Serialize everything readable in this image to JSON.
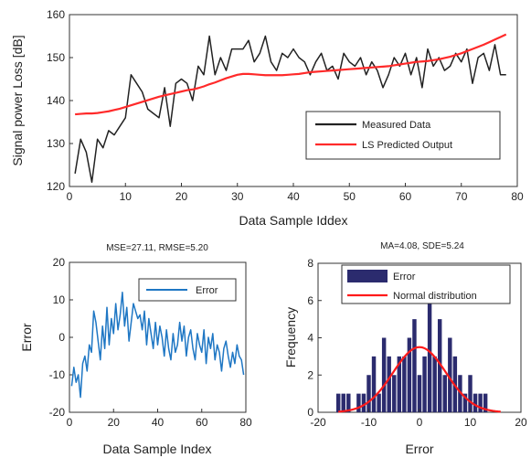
{
  "chart_data": [
    {
      "type": "line",
      "xlabel": "Data Sample Iddex",
      "ylabel": "Signal power Loss [dB]",
      "xlim": [
        0,
        80
      ],
      "ylim": [
        120,
        160
      ],
      "xticks": [
        "0",
        "10",
        "20",
        "30",
        "40",
        "50",
        "60",
        "70",
        "80"
      ],
      "yticks": [
        "120",
        "130",
        "140",
        "150",
        "160"
      ],
      "legend_position": "bottom-right",
      "colors": {
        "measured": "#222222",
        "predicted": "#ff2a2a"
      },
      "series": [
        {
          "name": "Measured Data",
          "x": [
            1,
            2,
            3,
            4,
            5,
            6,
            7,
            8,
            9,
            10,
            11,
            12,
            13,
            14,
            15,
            16,
            17,
            18,
            19,
            20,
            21,
            22,
            23,
            24,
            25,
            26,
            27,
            28,
            29,
            30,
            31,
            32,
            33,
            34,
            35,
            36,
            37,
            38,
            39,
            40,
            41,
            42,
            43,
            44,
            45,
            46,
            47,
            48,
            49,
            50,
            51,
            52,
            53,
            54,
            55,
            56,
            57,
            58,
            59,
            60,
            61,
            62,
            63,
            64,
            65,
            66,
            67,
            68,
            69,
            70,
            71,
            72,
            73,
            74,
            75,
            76,
            77,
            78
          ],
          "values": [
            123,
            131,
            128,
            121,
            131,
            129,
            133,
            132,
            134,
            136,
            146,
            144,
            142,
            138,
            137,
            136,
            143,
            134,
            144,
            145,
            144,
            140,
            148,
            146,
            155,
            146,
            150,
            147,
            152,
            152,
            152,
            154,
            149,
            151,
            155,
            149,
            147,
            151,
            150,
            152,
            150,
            149,
            146,
            149,
            151,
            147,
            148,
            145,
            151,
            149,
            148,
            150,
            146,
            149,
            147,
            143,
            146,
            150,
            148,
            151,
            146,
            150,
            143,
            152,
            148,
            150,
            147,
            148,
            151,
            149,
            152,
            144,
            150,
            151,
            147,
            153,
            146,
            146
          ]
        },
        {
          "name": "LS Predicted Output",
          "x": [
            1,
            2,
            3,
            4,
            5,
            6,
            7,
            8,
            9,
            10,
            11,
            12,
            13,
            14,
            15,
            16,
            17,
            18,
            19,
            20,
            21,
            22,
            23,
            24,
            25,
            26,
            27,
            28,
            29,
            30,
            31,
            32,
            33,
            34,
            35,
            36,
            37,
            38,
            39,
            40,
            41,
            42,
            43,
            44,
            45,
            46,
            47,
            48,
            49,
            50,
            51,
            52,
            53,
            54,
            55,
            56,
            57,
            58,
            59,
            60,
            61,
            62,
            63,
            64,
            65,
            66,
            67,
            68,
            69,
            70,
            71,
            72,
            73,
            74,
            75,
            76,
            77,
            78
          ],
          "values": [
            136.8,
            136.9,
            137.0,
            137.0,
            137.1,
            137.3,
            137.5,
            137.8,
            138.1,
            138.5,
            138.9,
            139.3,
            139.7,
            140.1,
            140.5,
            140.9,
            141.2,
            141.5,
            141.8,
            142.1,
            142.4,
            142.6,
            142.9,
            143.3,
            143.8,
            144.2,
            144.7,
            145.2,
            145.6,
            146.0,
            146.2,
            146.2,
            146.1,
            146.0,
            145.9,
            145.9,
            145.9,
            145.9,
            146.0,
            146.1,
            146.2,
            146.4,
            146.6,
            146.7,
            146.8,
            146.9,
            147.0,
            147.1,
            147.2,
            147.3,
            147.4,
            147.5,
            147.6,
            147.7,
            147.8,
            147.9,
            148.0,
            148.2,
            148.4,
            148.6,
            148.8,
            149.0,
            149.1,
            149.2,
            149.4,
            149.6,
            149.9,
            150.2,
            150.6,
            151.0,
            151.5,
            152.0,
            152.5,
            153.0,
            153.6,
            154.2,
            154.8,
            155.4
          ]
        }
      ]
    },
    {
      "type": "line",
      "title": "MSE=27.11, RMSE=5.20",
      "xlabel": "Data Sample Index",
      "ylabel": "Error",
      "xlim": [
        0,
        80
      ],
      "ylim": [
        -20,
        20
      ],
      "xticks": [
        "0",
        "20",
        "40",
        "60",
        "80"
      ],
      "yticks": [
        "-20",
        "-10",
        "0",
        "10",
        "20"
      ],
      "legend_position": "top-right",
      "colors": {
        "error": "#1f77c4"
      },
      "series": [
        {
          "name": "Error",
          "x": [
            1,
            2,
            3,
            4,
            5,
            6,
            7,
            8,
            9,
            10,
            11,
            12,
            13,
            14,
            15,
            16,
            17,
            18,
            19,
            20,
            21,
            22,
            23,
            24,
            25,
            26,
            27,
            28,
            29,
            30,
            31,
            32,
            33,
            34,
            35,
            36,
            37,
            38,
            39,
            40,
            41,
            42,
            43,
            44,
            45,
            46,
            47,
            48,
            49,
            50,
            51,
            52,
            53,
            54,
            55,
            56,
            57,
            58,
            59,
            60,
            61,
            62,
            63,
            64,
            65,
            66,
            67,
            68,
            69,
            70,
            71,
            72,
            73,
            74,
            75,
            76,
            77,
            78,
            79
          ],
          "values": [
            -13,
            -8,
            -12,
            -10,
            -16,
            -7,
            -5,
            -9,
            -2,
            -4,
            7,
            4,
            -1,
            -6,
            3,
            -3,
            8,
            -2,
            5,
            1,
            9,
            2,
            6,
            12,
            3,
            8,
            -1,
            4,
            9,
            7,
            5,
            6,
            2,
            7,
            -2,
            5,
            1,
            -3,
            4,
            -2,
            3,
            0,
            -5,
            2,
            -3,
            -6,
            1,
            -4,
            -2,
            4,
            -1,
            3,
            -5,
            0,
            2,
            -3,
            -6,
            1,
            -2,
            -4,
            2,
            -7,
            0,
            -3,
            1,
            -6,
            -2,
            -4,
            -9,
            -3,
            -1,
            -5,
            -8,
            -4,
            -7,
            -2,
            -5,
            -6,
            -10
          ]
        }
      ]
    },
    {
      "type": "bar",
      "title": "MA=4.08, SDE=5.24",
      "xlabel": "Error",
      "ylabel": "Frequency",
      "xlim": [
        -20,
        20
      ],
      "ylim": [
        0,
        8
      ],
      "xticks": [
        "-20",
        "-10",
        "0",
        "10",
        "20"
      ],
      "yticks": [
        "0",
        "2",
        "4",
        "6",
        "8"
      ],
      "legend_position": "top-right",
      "colors": {
        "bars": "#2b2b6e",
        "normal": "#ff1a1a"
      },
      "bin_centers": [
        -16,
        -15,
        -14,
        -12,
        -11,
        -10,
        -9,
        -8,
        -7,
        -6,
        -5,
        -4,
        -3,
        -2,
        -1,
        0,
        1,
        2,
        3,
        4,
        5,
        6,
        7,
        8,
        9,
        10,
        11,
        12,
        13
      ],
      "values": [
        1,
        1,
        1,
        1,
        1,
        2,
        3,
        1,
        4,
        3,
        2,
        3,
        3,
        4,
        5,
        2,
        3,
        6,
        3,
        5,
        2,
        4,
        3,
        2,
        1,
        2,
        1,
        1,
        1
      ],
      "normal_curve": {
        "mean": 0,
        "std": 5.24,
        "peak": 3.5
      },
      "series": [
        {
          "name": "Error"
        },
        {
          "name": "Normal distribution"
        }
      ]
    }
  ]
}
